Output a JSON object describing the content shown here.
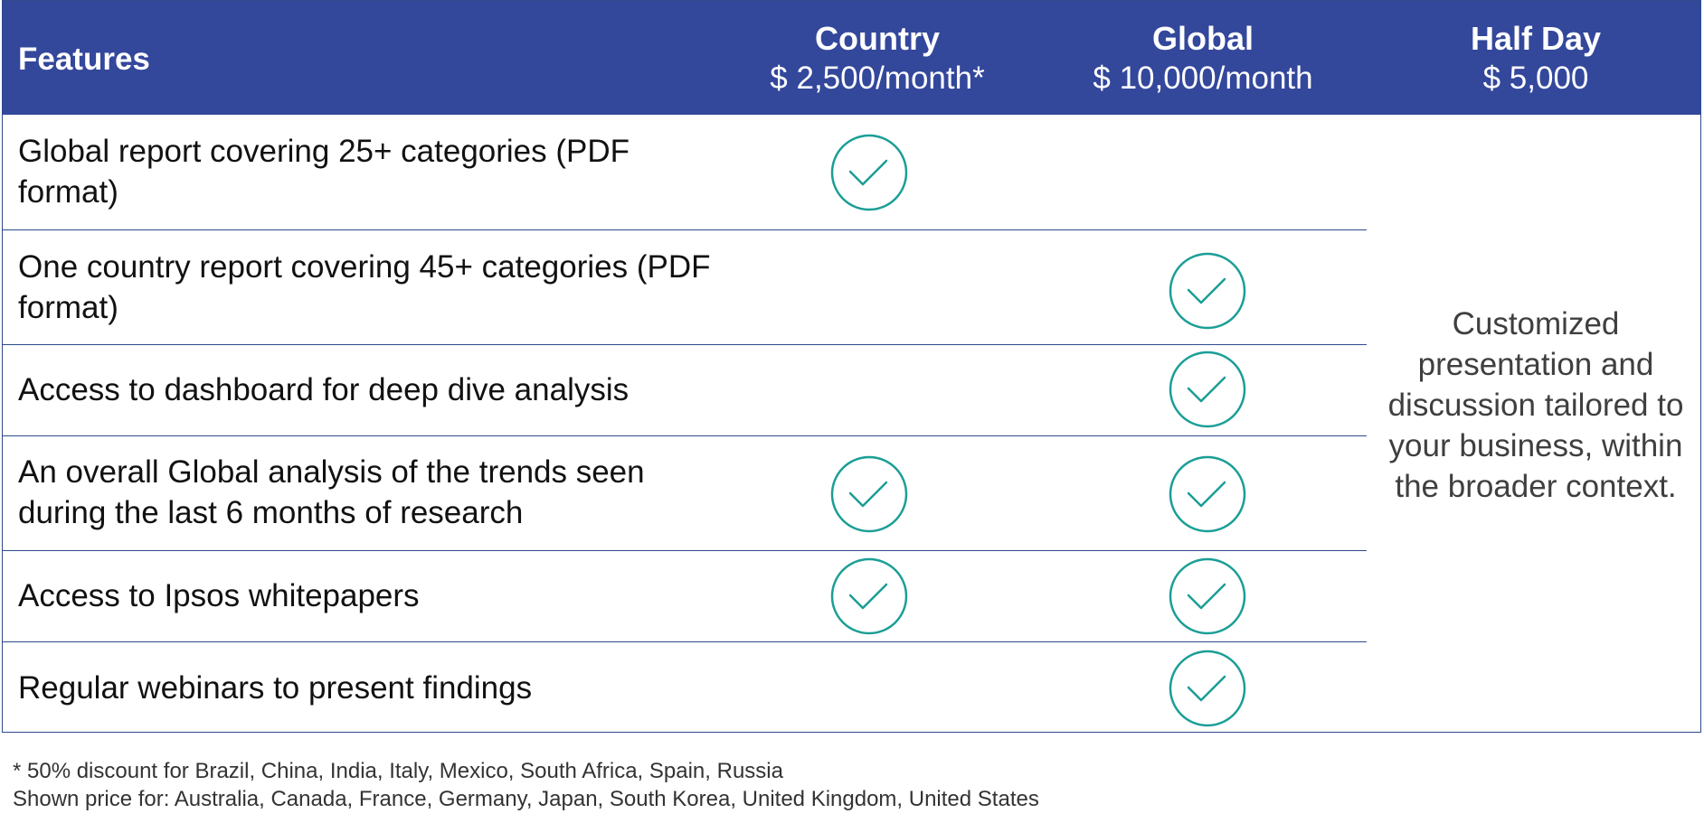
{
  "header": {
    "features_label": "Features",
    "columns": [
      {
        "name": "Country",
        "price": "$ 2,500/month*"
      },
      {
        "name": "Global",
        "price": "$ 10,000/month"
      },
      {
        "name": "Half Day",
        "price": "$ 5,000"
      }
    ]
  },
  "rows": [
    {
      "feature": "Global report covering 25+ categories (PDF format)",
      "country": true,
      "global": false
    },
    {
      "feature": "One country report covering 45+ categories (PDF format)",
      "country": false,
      "global": true
    },
    {
      "feature": "Access to dashboard for deep dive analysis",
      "country": false,
      "global": true
    },
    {
      "feature": "An overall Global analysis of the trends seen during the last 6 months of research",
      "country": true,
      "global": true
    },
    {
      "feature": "Access to Ipsos whitepapers",
      "country": true,
      "global": true
    },
    {
      "feature": "Regular webinars to present findings",
      "country": false,
      "global": true
    }
  ],
  "half_day_note": "Customized presentation and discussion tailored to your business, within the broader context.",
  "footnotes": {
    "discount": "* 50% discount for Brazil, China, India, Italy, Mexico, South Africa, Spain, Russia",
    "shown_price": "Shown price for: Australia, Canada, France, Germany, Japan, South Korea, United Kingdom, United States"
  },
  "colors": {
    "header_bg": "#33479b",
    "check": "#1a9e96",
    "border": "#2e4a8c"
  },
  "icons": {
    "check": "check-circle-icon"
  }
}
